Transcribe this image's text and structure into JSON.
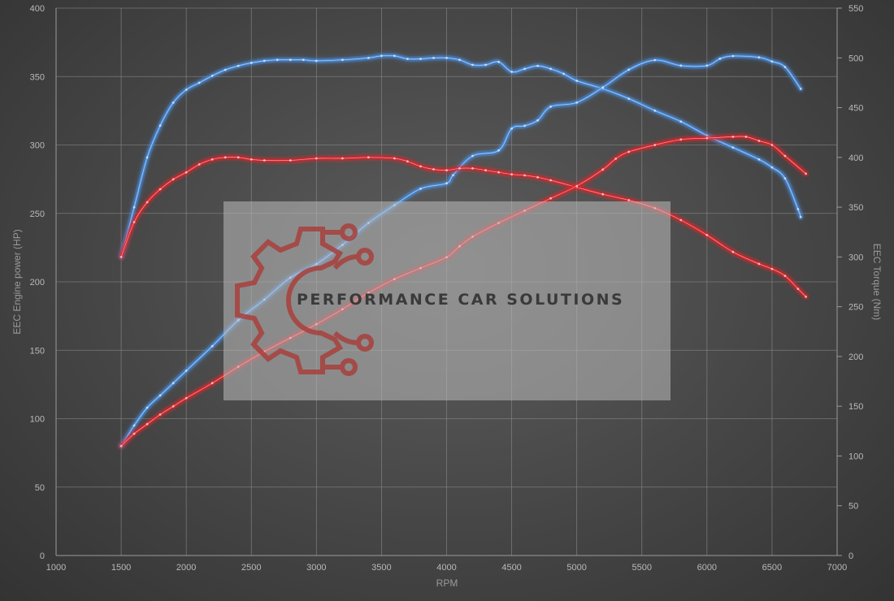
{
  "colors": {
    "stock": "#4a90e2",
    "tuned": "#e0242a",
    "watermark_logo": "#a8403c",
    "watermark_text": "#3a3a3a",
    "grid": "#8a8a8a"
  },
  "watermark": {
    "text": "PERFORMANCE CAR SOLUTIONS",
    "icon": "gear-circuit-logo"
  },
  "chart_data": {
    "type": "line",
    "title": "",
    "xlabel": "RPM",
    "ylabel_left": "EEC Engine power (HP)",
    "ylabel_right": "EEC Torque (Nm)",
    "xlim": [
      1000,
      7000
    ],
    "ylim_left": [
      0,
      400
    ],
    "ylim_right": [
      0,
      550
    ],
    "x_ticks": [
      1000,
      1500,
      2000,
      2500,
      3000,
      3500,
      4000,
      4500,
      5000,
      5500,
      6000,
      6500,
      7000
    ],
    "y_ticks_left": [
      0,
      50,
      100,
      150,
      200,
      250,
      300,
      350,
      400
    ],
    "y_ticks_right": [
      0,
      50,
      100,
      150,
      200,
      250,
      300,
      350,
      400,
      450,
      500,
      550
    ],
    "grid": true,
    "legend": "none",
    "series": [
      {
        "axis": "right",
        "color_key": "stock",
        "points": [
          [
            1500,
            300
          ],
          [
            1600,
            350
          ],
          [
            1700,
            400
          ],
          [
            1800,
            432
          ],
          [
            1900,
            455
          ],
          [
            2000,
            468
          ],
          [
            2100,
            475
          ],
          [
            2200,
            482
          ],
          [
            2300,
            488
          ],
          [
            2400,
            492
          ],
          [
            2500,
            495
          ],
          [
            2600,
            497
          ],
          [
            2700,
            498
          ],
          [
            2800,
            498
          ],
          [
            2900,
            498
          ],
          [
            3000,
            497
          ],
          [
            3200,
            498
          ],
          [
            3400,
            500
          ],
          [
            3500,
            502
          ],
          [
            3600,
            502
          ],
          [
            3700,
            499
          ],
          [
            3800,
            499
          ],
          [
            3900,
            500
          ],
          [
            4000,
            500
          ],
          [
            4100,
            498
          ],
          [
            4200,
            493
          ],
          [
            4300,
            493
          ],
          [
            4400,
            496
          ],
          [
            4500,
            486
          ],
          [
            4600,
            489
          ],
          [
            4700,
            492
          ],
          [
            4800,
            489
          ],
          [
            4900,
            484
          ],
          [
            5000,
            477
          ],
          [
            5200,
            469
          ],
          [
            5400,
            459
          ],
          [
            5600,
            447
          ],
          [
            5800,
            436
          ],
          [
            6000,
            422
          ],
          [
            6200,
            410
          ],
          [
            6400,
            398
          ],
          [
            6500,
            390
          ],
          [
            6600,
            379
          ],
          [
            6700,
            348
          ],
          [
            6720,
            340
          ]
        ]
      },
      {
        "axis": "left",
        "color_key": "stock",
        "points": [
          [
            1500,
            80
          ],
          [
            1600,
            95
          ],
          [
            1700,
            108
          ],
          [
            1800,
            117
          ],
          [
            1900,
            126
          ],
          [
            2000,
            135
          ],
          [
            2200,
            153
          ],
          [
            2400,
            172
          ],
          [
            2600,
            187
          ],
          [
            2800,
            203
          ],
          [
            3000,
            213
          ],
          [
            3200,
            227
          ],
          [
            3400,
            243
          ],
          [
            3600,
            256
          ],
          [
            3800,
            268
          ],
          [
            4000,
            272
          ],
          [
            4050,
            278
          ],
          [
            4200,
            292
          ],
          [
            4400,
            296
          ],
          [
            4500,
            312
          ],
          [
            4600,
            314
          ],
          [
            4700,
            318
          ],
          [
            4800,
            328
          ],
          [
            5000,
            331
          ],
          [
            5200,
            342
          ],
          [
            5400,
            355
          ],
          [
            5600,
            362
          ],
          [
            5800,
            358
          ],
          [
            6000,
            358
          ],
          [
            6100,
            363
          ],
          [
            6200,
            365
          ],
          [
            6400,
            364
          ],
          [
            6500,
            361
          ],
          [
            6600,
            357
          ],
          [
            6720,
            341
          ]
        ]
      },
      {
        "axis": "right",
        "color_key": "tuned",
        "points": [
          [
            1500,
            300
          ],
          [
            1600,
            335
          ],
          [
            1700,
            355
          ],
          [
            1800,
            368
          ],
          [
            1900,
            378
          ],
          [
            2000,
            385
          ],
          [
            2100,
            393
          ],
          [
            2200,
            398
          ],
          [
            2300,
            400
          ],
          [
            2400,
            400
          ],
          [
            2500,
            398
          ],
          [
            2600,
            397
          ],
          [
            2800,
            397
          ],
          [
            3000,
            399
          ],
          [
            3200,
            399
          ],
          [
            3400,
            400
          ],
          [
            3600,
            399
          ],
          [
            3700,
            396
          ],
          [
            3800,
            391
          ],
          [
            3900,
            388
          ],
          [
            4000,
            387
          ],
          [
            4100,
            389
          ],
          [
            4200,
            389
          ],
          [
            4300,
            387
          ],
          [
            4400,
            385
          ],
          [
            4500,
            383
          ],
          [
            4600,
            382
          ],
          [
            4700,
            380
          ],
          [
            4800,
            377
          ],
          [
            5000,
            370
          ],
          [
            5200,
            363
          ],
          [
            5400,
            357
          ],
          [
            5600,
            349
          ],
          [
            5800,
            337
          ],
          [
            6000,
            322
          ],
          [
            6200,
            305
          ],
          [
            6400,
            293
          ],
          [
            6500,
            288
          ],
          [
            6600,
            281
          ],
          [
            6700,
            268
          ],
          [
            6760,
            260
          ]
        ]
      },
      {
        "axis": "left",
        "color_key": "tuned",
        "points": [
          [
            1500,
            80
          ],
          [
            1600,
            89
          ],
          [
            1700,
            96
          ],
          [
            1800,
            103
          ],
          [
            1900,
            109
          ],
          [
            2000,
            115
          ],
          [
            2200,
            126
          ],
          [
            2400,
            138
          ],
          [
            2600,
            149
          ],
          [
            2800,
            159
          ],
          [
            3000,
            169
          ],
          [
            3200,
            180
          ],
          [
            3400,
            192
          ],
          [
            3600,
            202
          ],
          [
            3800,
            210
          ],
          [
            4000,
            218
          ],
          [
            4100,
            226
          ],
          [
            4200,
            233
          ],
          [
            4400,
            243
          ],
          [
            4600,
            252
          ],
          [
            4800,
            261
          ],
          [
            5000,
            270
          ],
          [
            5200,
            282
          ],
          [
            5300,
            290
          ],
          [
            5400,
            295
          ],
          [
            5600,
            300
          ],
          [
            5800,
            304
          ],
          [
            6000,
            305
          ],
          [
            6200,
            306
          ],
          [
            6300,
            306
          ],
          [
            6400,
            303
          ],
          [
            6500,
            300
          ],
          [
            6600,
            292
          ],
          [
            6760,
            279
          ]
        ]
      }
    ]
  }
}
